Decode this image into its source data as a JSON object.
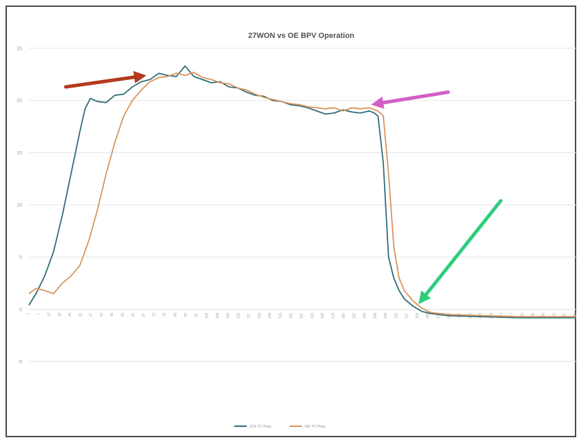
{
  "chart_data": {
    "type": "line",
    "title": "27WON vs OE BPV Operation",
    "xlabel": "",
    "ylabel": "",
    "ylim": [
      -10,
      25
    ],
    "yticks": [
      "-5",
      "0",
      "5",
      "10",
      "15",
      "20",
      "25"
    ],
    "grid": true,
    "legend_position": "bottom",
    "xticks": [
      "1",
      "7",
      "13",
      "19",
      "25",
      "31",
      "37",
      "43",
      "49",
      "55",
      "61",
      "67",
      "73",
      "79",
      "85",
      "91",
      "97",
      "103",
      "109",
      "115",
      "121",
      "127",
      "133",
      "139",
      "145",
      "151",
      "157",
      "163",
      "169",
      "175",
      "181",
      "187",
      "193",
      "199",
      "205",
      "211",
      "217",
      "223",
      "229",
      "235",
      "241",
      "247",
      "253",
      "259",
      "265",
      "271",
      "277",
      "283",
      "289",
      "295",
      "301",
      "307",
      "313"
    ],
    "x_min": 1,
    "x_max": 313,
    "series": [
      {
        "name": "27S TC Pres",
        "color": "#2f6b7b",
        "points": [
          [
            1,
            0.4
          ],
          [
            5,
            1.5
          ],
          [
            10,
            3.2
          ],
          [
            15,
            5.5
          ],
          [
            20,
            9
          ],
          [
            25,
            13
          ],
          [
            30,
            17
          ],
          [
            33,
            19.2
          ],
          [
            36,
            20.2
          ],
          [
            40,
            19.9
          ],
          [
            45,
            19.8
          ],
          [
            50,
            20.5
          ],
          [
            55,
            20.6
          ],
          [
            60,
            21.3
          ],
          [
            65,
            21.8
          ],
          [
            70,
            22.0
          ],
          [
            75,
            22.6
          ],
          [
            80,
            22.4
          ],
          [
            85,
            22.3
          ],
          [
            90,
            23.3
          ],
          [
            95,
            22.3
          ],
          [
            100,
            22.0
          ],
          [
            105,
            21.7
          ],
          [
            110,
            21.8
          ],
          [
            115,
            21.3
          ],
          [
            120,
            21.2
          ],
          [
            125,
            20.8
          ],
          [
            130,
            20.5
          ],
          [
            135,
            20.4
          ],
          [
            140,
            20.0
          ],
          [
            145,
            19.9
          ],
          [
            150,
            19.6
          ],
          [
            155,
            19.5
          ],
          [
            160,
            19.3
          ],
          [
            165,
            19.0
          ],
          [
            170,
            18.7
          ],
          [
            175,
            18.8
          ],
          [
            180,
            19.1
          ],
          [
            185,
            18.9
          ],
          [
            190,
            18.8
          ],
          [
            195,
            19.0
          ],
          [
            198,
            18.8
          ],
          [
            200,
            18.5
          ],
          [
            203,
            14
          ],
          [
            206,
            5
          ],
          [
            209,
            3
          ],
          [
            212,
            1.8
          ],
          [
            215,
            1.0
          ],
          [
            220,
            0.3
          ],
          [
            225,
            -0.2
          ],
          [
            230,
            -0.4
          ],
          [
            240,
            -0.6
          ],
          [
            260,
            -0.7
          ],
          [
            280,
            -0.8
          ],
          [
            300,
            -0.8
          ],
          [
            313,
            -0.8
          ]
        ]
      },
      {
        "name": "OE TC Pres",
        "color": "#d8945a",
        "points": [
          [
            1,
            1.5
          ],
          [
            5,
            2.0
          ],
          [
            10,
            1.8
          ],
          [
            15,
            1.5
          ],
          [
            20,
            2.5
          ],
          [
            25,
            3.2
          ],
          [
            30,
            4.2
          ],
          [
            35,
            6.5
          ],
          [
            40,
            9.5
          ],
          [
            45,
            13
          ],
          [
            50,
            16
          ],
          [
            55,
            18.5
          ],
          [
            60,
            20
          ],
          [
            65,
            21
          ],
          [
            70,
            21.8
          ],
          [
            75,
            22.2
          ],
          [
            80,
            22.3
          ],
          [
            85,
            22.6
          ],
          [
            90,
            22.4
          ],
          [
            95,
            22.7
          ],
          [
            100,
            22.2
          ],
          [
            105,
            22.0
          ],
          [
            110,
            21.7
          ],
          [
            115,
            21.6
          ],
          [
            120,
            21.2
          ],
          [
            125,
            21.0
          ],
          [
            130,
            20.6
          ],
          [
            135,
            20.3
          ],
          [
            140,
            20.1
          ],
          [
            145,
            19.9
          ],
          [
            150,
            19.7
          ],
          [
            155,
            19.6
          ],
          [
            160,
            19.4
          ],
          [
            165,
            19.3
          ],
          [
            170,
            19.2
          ],
          [
            175,
            19.3
          ],
          [
            180,
            19.0
          ],
          [
            185,
            19.3
          ],
          [
            190,
            19.2
          ],
          [
            195,
            19.3
          ],
          [
            200,
            19.0
          ],
          [
            203,
            18.5
          ],
          [
            206,
            13
          ],
          [
            209,
            6
          ],
          [
            212,
            3
          ],
          [
            215,
            1.8
          ],
          [
            220,
            0.8
          ],
          [
            225,
            0.1
          ],
          [
            230,
            -0.3
          ],
          [
            240,
            -0.5
          ],
          [
            260,
            -0.6
          ],
          [
            280,
            -0.7
          ],
          [
            300,
            -0.7
          ],
          [
            313,
            -0.7
          ]
        ]
      }
    ],
    "annotations": [
      {
        "kind": "arrow",
        "color": "#b43a1e",
        "from": [
          22,
          21.3
        ],
        "to": [
          68,
          22.4
        ]
      },
      {
        "kind": "arrow",
        "color": "#d35fc4",
        "from": [
          240,
          20.8
        ],
        "to": [
          196,
          19.6
        ]
      },
      {
        "kind": "arrow",
        "color": "#2ecc7d",
        "from": [
          270,
          10.4
        ],
        "to": [
          223,
          0.5
        ]
      }
    ]
  }
}
